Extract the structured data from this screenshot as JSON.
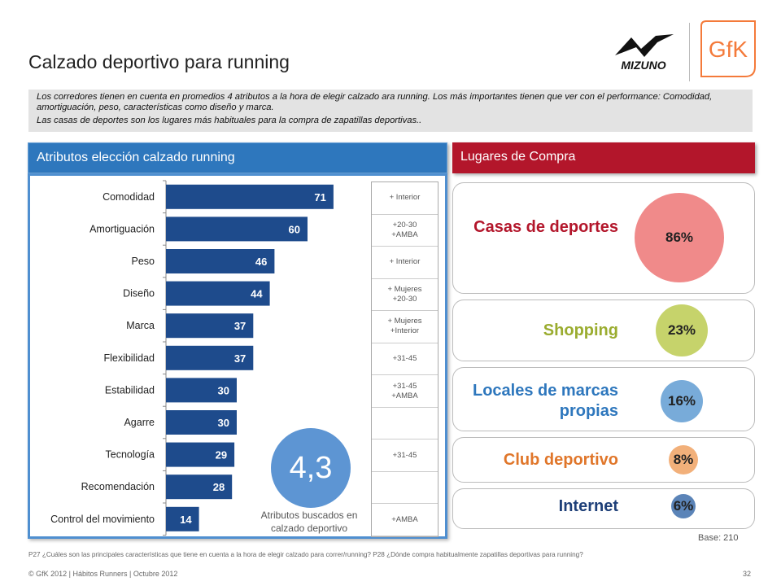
{
  "title": "Calzado deportivo para running",
  "summary": [
    "Los corredores tienen en cuenta en promedios 4 atributos a la hora de elegir calzado ara running. Los más importantes tienen que ver con el performance: Comodidad, amortiguación, peso, características como diseño y marca.",
    "Las casas de deportes son los lugares más habituales para la compra de zapatillas deportivas.."
  ],
  "left_header": "Atributos elección calzado running",
  "right_header": "Lugares de Compra",
  "logos": {
    "mizuno": "MIZUNO",
    "gfk": "GfK"
  },
  "chart_data": {
    "type": "bar",
    "orientation": "horizontal",
    "categories": [
      "Comodidad",
      "Amortiguación",
      "Peso",
      "Diseño",
      "Marca",
      "Flexibilidad",
      "Estabilidad",
      "Agarre",
      "Tecnología",
      "Recomendación",
      "Control del movimiento"
    ],
    "values": [
      71,
      60,
      46,
      44,
      37,
      37,
      30,
      30,
      29,
      28,
      14
    ],
    "xlim": [
      0,
      100
    ],
    "bar_color": "#1e4b8c",
    "segments": [
      "+ Interior",
      "+20-30\n+AMBA",
      "+ Interior",
      "+ Mujeres\n+20-30",
      "+ Mujeres\n+Interior",
      "+31-45",
      "+31-45\n+AMBA",
      "",
      "+31-45",
      "",
      "+AMBA"
    ]
  },
  "average": {
    "value": "4,3",
    "caption": "Atributos buscados en calzado deportivo"
  },
  "places": [
    {
      "label": "Casas de deportes",
      "value": "86%",
      "color": "#f08a8a",
      "text_color": "#b3162b"
    },
    {
      "label": "Shopping",
      "value": "23%",
      "color": "#c6d36b",
      "text_color": "#9aac2f"
    },
    {
      "label": "Locales de marcas propias",
      "value": "16%",
      "color": "#78abd9",
      "text_color": "#2e77bd"
    },
    {
      "label": "Club deportivo",
      "value": "8%",
      "color": "#f2b07a",
      "text_color": "#e0762a"
    },
    {
      "label": "Internet",
      "value": "6%",
      "color": "#5b84b8",
      "text_color": "#1e3f78"
    }
  ],
  "base": "Base: 210",
  "footnote": "P27 ¿Cuáles son las principales características que tiene en cuenta a la hora de elegir calzado para correr/running? P28 ¿Dónde compra habitualmente zapatillas deportivas para running?",
  "footer": "© GfK 2012 | Hábitos Runners | Octubre 2012",
  "page": "32"
}
